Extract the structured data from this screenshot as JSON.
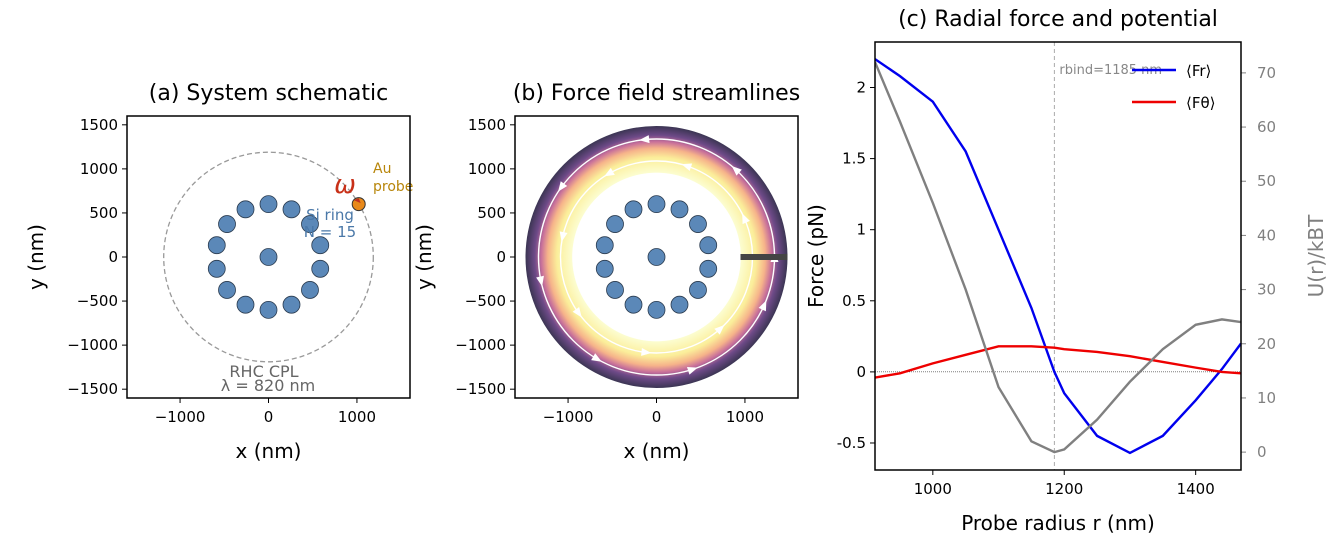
{
  "chart_data": [
    {
      "type": "scatter",
      "title": "(a) System schematic",
      "x_label": "x (nm)",
      "y_label": "y (nm)",
      "xlim": [
        -1600,
        1600
      ],
      "ylim": [
        -1600,
        1600
      ],
      "xticks": [
        {
          "value": -1000,
          "label": "−1000"
        },
        0,
        1000
      ],
      "yticks": [
        {
          "value": -1500,
          "label": "−1500"
        },
        {
          "value": -1000,
          "label": "−1000"
        },
        {
          "value": -500,
          "label": "−500"
        },
        0,
        500,
        1000,
        1500
      ],
      "particles": {
        "color": "#5b88b8",
        "x": [
          585,
          469,
          260,
          0,
          -260,
          -469,
          -585,
          -585,
          -469,
          -260,
          0,
          260,
          469,
          585,
          0
        ],
        "y": [
          134,
          374,
          541,
          600,
          541,
          374,
          134,
          -134,
          -374,
          -541,
          -600,
          -541,
          -374,
          -134,
          0
        ]
      },
      "orbit_radius": 1185,
      "probe": {
        "x": 1020,
        "y": 600,
        "color": "#e8891a"
      },
      "annotations": {
        "omega": "ω",
        "probe": [
          "Au",
          "probe"
        ],
        "ring": [
          "Si ring",
          "N = 15"
        ],
        "light": [
          "RHC CPL",
          "λ = 820 nm"
        ]
      }
    },
    {
      "type": "scatter",
      "title": "(b) Force field streamlines",
      "x_label": "x (nm)",
      "y_label": "y (nm)",
      "xlim": [
        -1600,
        1600
      ],
      "ylim": [
        -1600,
        1600
      ],
      "xticks": [
        {
          "value": -1000,
          "label": "−1000"
        },
        0,
        1000
      ],
      "yticks": [
        {
          "value": -1500,
          "label": "−1500"
        },
        {
          "value": -1000,
          "label": "−1000"
        },
        {
          "value": -500,
          "label": "−500"
        },
        0,
        500,
        1000,
        1500
      ],
      "particles": {
        "color": "#5b88b8",
        "x": [
          585,
          469,
          260,
          0,
          -260,
          -469,
          -585,
          -585,
          -469,
          -260,
          0,
          260,
          469,
          585,
          0
        ],
        "y": [
          134,
          374,
          541,
          600,
          541,
          374,
          134,
          -134,
          -374,
          -541,
          -600,
          -541,
          -374,
          -134,
          0
        ]
      }
    },
    {
      "type": "line",
      "title": "(c) Radial force and potential",
      "x_label": "Probe radius r (nm)",
      "y_label": "Force (pN)",
      "y2_label": "U(r)/kBT",
      "xlim": [
        912,
        1469
      ],
      "ylim": [
        -0.69,
        2.32
      ],
      "y2lim": [
        -3.3,
        75.7
      ],
      "xticks": [
        1000,
        1200,
        1400
      ],
      "yticks": [
        -0.5,
        0.0,
        0.5,
        1.0,
        1.5,
        2.0
      ],
      "y2ticks": [
        0,
        10,
        20,
        30,
        40,
        50,
        60,
        70
      ],
      "x": [
        912,
        950,
        1000,
        1050,
        1100,
        1150,
        1185,
        1200,
        1250,
        1300,
        1350,
        1400,
        1440,
        1469
      ],
      "series": [
        {
          "name": "⟨Fr⟩",
          "color": "#0000ee",
          "values": [
            2.2,
            2.08,
            1.9,
            1.55,
            1.0,
            0.45,
            0.0,
            -0.15,
            -0.45,
            -0.57,
            -0.45,
            -0.2,
            0.02,
            0.2
          ]
        },
        {
          "name": "⟨Fθ⟩",
          "color": "#ee0000",
          "values": [
            -0.04,
            -0.01,
            0.06,
            0.12,
            0.18,
            0.18,
            0.17,
            0.16,
            0.14,
            0.11,
            0.07,
            0.03,
            0.0,
            -0.01
          ]
        },
        {
          "color": "#808080",
          "axis": "y2",
          "values": [
            72,
            61,
            46,
            30,
            12,
            2,
            0,
            0.5,
            6,
            13,
            19,
            23.5,
            24.5,
            24
          ]
        }
      ],
      "vline": 1185,
      "vline_label": "rbind=1185 nm",
      "legend": "upper right"
    }
  ]
}
